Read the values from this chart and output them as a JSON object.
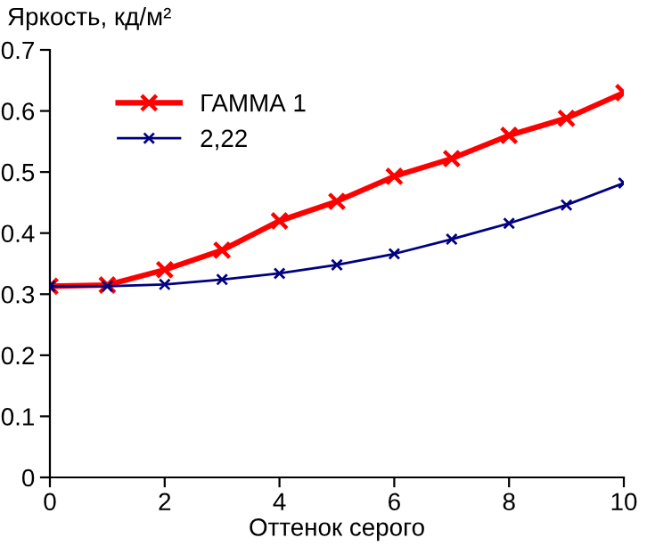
{
  "chart_data": {
    "type": "line",
    "xlabel": "Оттенок серого",
    "ylabel": "Яркость, кд/м²",
    "x": [
      0,
      1,
      2,
      3,
      4,
      5,
      6,
      7,
      8,
      9,
      10
    ],
    "series": [
      {
        "name": "ГАММА 1",
        "color": "#ff0000",
        "values": [
          0.313,
          0.315,
          0.34,
          0.372,
          0.42,
          0.452,
          0.493,
          0.522,
          0.56,
          0.588,
          0.63
        ]
      },
      {
        "name": "2,22",
        "color": "#000080",
        "values": [
          0.313,
          0.313,
          0.316,
          0.324,
          0.334,
          0.348,
          0.366,
          0.39,
          0.416,
          0.446,
          0.482
        ]
      }
    ],
    "xlim": [
      0,
      10
    ],
    "xticks": [
      0,
      2,
      4,
      6,
      8,
      10
    ],
    "ylim": [
      0,
      0.7
    ],
    "yticks": [
      0,
      0.1,
      0.2,
      0.3,
      0.4,
      0.5,
      0.6,
      0.7
    ],
    "marker": "cross",
    "line_style": "solid",
    "grid": false,
    "legend": "top left"
  }
}
